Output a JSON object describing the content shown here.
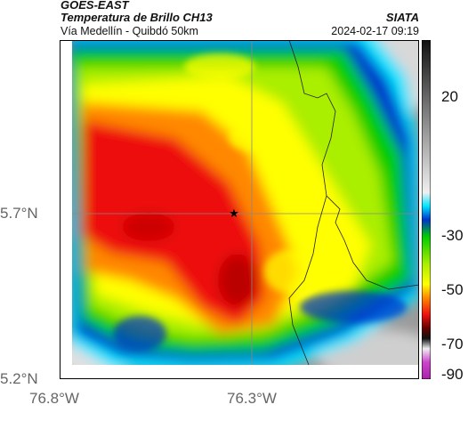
{
  "header": {
    "satellite": "GOES-EAST",
    "product": "Temperatura de Brillo CH13",
    "region": "Vía Medellín - Quibdó 50km",
    "source": "SIATA",
    "timestamp": "2024-02-17 09:19"
  },
  "map": {
    "lat_ticks": [
      {
        "label": "5.7°N",
        "value": 5.7
      },
      {
        "label": "5.2°N",
        "value": 5.2
      }
    ],
    "lon_ticks": [
      {
        "label": "76.8°W",
        "value": -76.8
      },
      {
        "label": "76.3°W",
        "value": -76.3
      }
    ],
    "marker": "star-icon"
  },
  "colorbar": {
    "ticks": [
      "20",
      "-30",
      "-50",
      "-70",
      "-90"
    ],
    "colors": {
      "white": "#ffffff",
      "gray": "#9a9a9a",
      "dark_gray": "#3a3a3a",
      "cyan": "#00e5ff",
      "blue": "#0033cc",
      "green": "#00cc00",
      "yellow": "#ffff00",
      "orange": "#ff8800",
      "red": "#ee1111",
      "dark_red": "#660000",
      "magenta": "#cc44cc"
    }
  }
}
